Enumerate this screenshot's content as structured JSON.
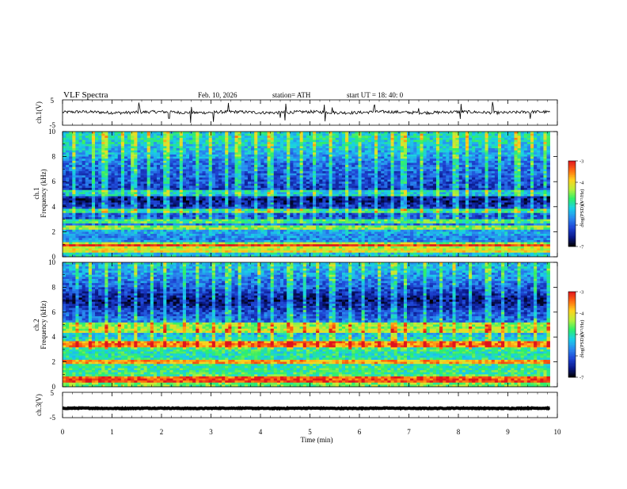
{
  "header": {
    "title": "VLF  Spectra",
    "date": "Feb. 10, 2026",
    "station": "station= ATH",
    "start": "start  UT  =    18: 40: 0"
  },
  "colors": {
    "axis": "#000000",
    "waveform": "#000000",
    "colormap": [
      "#000000",
      "#0a1a8c",
      "#1f46d6",
      "#2a8cf0",
      "#19d0e8",
      "#2ef06a",
      "#b8f03a",
      "#ffd21e",
      "#ff6a10",
      "#e0141e",
      "#ffffff"
    ]
  },
  "chart_data": [
    {
      "type": "line",
      "name": "ch1-waveform",
      "ylabel": "ch.1(V)",
      "ylim": [
        -5,
        5
      ],
      "yticks": [
        "5",
        "-5"
      ],
      "x_range_min": [
        0,
        9.85
      ],
      "baseline_v": 0.1,
      "noise_amplitude_v": 0.6,
      "spikes_min": [
        1.55,
        2.15,
        2.6,
        3.05,
        3.35,
        4.4,
        4.5,
        5.3,
        5.45,
        6.3,
        7.2,
        8.05,
        8.7,
        9.45
      ],
      "legend": false
    },
    {
      "type": "heatmap",
      "name": "ch1-spectrogram",
      "ylabel_top": "ch.1",
      "ylabel": "Frequency (kHz)",
      "xlim": [
        0,
        10
      ],
      "ylim": [
        0,
        10
      ],
      "yticks": [
        "0",
        "2",
        "4",
        "6",
        "8",
        "10"
      ],
      "data_x_range_min": [
        0,
        9.85
      ],
      "colorbar": {
        "label": "log(PSD)(V²/Hz)",
        "range": [
          -7,
          -3
        ],
        "ticks": [
          "-3",
          "-4",
          "-5",
          "-6",
          "-7"
        ]
      },
      "freq_profile_khz": [
        0,
        0.5,
        1,
        1.5,
        2,
        2.5,
        3,
        3.5,
        4,
        4.5,
        5,
        5.5,
        6,
        6.5,
        7,
        7.5,
        8,
        8.5,
        9,
        9.5,
        10
      ],
      "mean_log_psd": [
        -5.2,
        -5.3,
        -5.6,
        -5.7,
        -5.4,
        -5.8,
        -6.0,
        -6.0,
        -6.3,
        -6.6,
        -6.5,
        -6.2,
        -6.1,
        -6.0,
        -5.9,
        -5.8,
        -5.6,
        -5.4,
        -5.2,
        -5.1,
        -5.1
      ],
      "line_frequencies_khz": [
        0.5,
        0.8,
        1.0,
        2.3,
        2.8,
        3.7,
        4.9,
        5.2
      ],
      "sferic_times_min": [
        0.25,
        0.6,
        0.85,
        1.2,
        1.45,
        1.75,
        2.1,
        2.4,
        2.75,
        3.0,
        3.3,
        3.55,
        3.9,
        4.2,
        4.55,
        4.85,
        5.1,
        5.4,
        5.75,
        6.0,
        6.35,
        6.65,
        6.9,
        7.25,
        7.6,
        7.95,
        8.2,
        8.55,
        8.85,
        9.2,
        9.5,
        9.75
      ]
    },
    {
      "type": "heatmap",
      "name": "ch2-spectrogram",
      "ylabel_top": "ch.2",
      "ylabel": "Frequency (kHz)",
      "xlim": [
        0,
        10
      ],
      "ylim": [
        0,
        10
      ],
      "yticks": [
        "0",
        "2",
        "4",
        "6",
        "8",
        "10"
      ],
      "data_x_range_min": [
        0,
        9.85
      ],
      "colorbar": {
        "label": "log(PSD)(V²/Hz)",
        "range": [
          -7,
          -3
        ],
        "ticks": [
          "-3",
          "-4",
          "-5",
          "-6",
          "-7"
        ]
      },
      "freq_profile_khz": [
        0,
        0.5,
        1,
        1.5,
        2,
        2.5,
        3,
        3.5,
        4,
        4.5,
        5,
        5.5,
        6,
        6.5,
        7,
        7.5,
        8,
        8.5,
        9,
        9.5,
        10
      ],
      "mean_log_psd": [
        -4.6,
        -4.4,
        -4.8,
        -4.9,
        -4.9,
        -5.0,
        -4.9,
        -4.7,
        -5.3,
        -5.5,
        -5.7,
        -5.9,
        -6.1,
        -6.4,
        -6.6,
        -6.3,
        -6.0,
        -5.8,
        -5.6,
        -5.4,
        -5.3
      ],
      "line_frequencies_khz": [
        0.4,
        0.7,
        1.9,
        2.1,
        3.3,
        3.6,
        4.4,
        4.7,
        5.0
      ],
      "sferic_times_min": [
        0.3,
        0.55,
        0.9,
        1.15,
        1.5,
        1.8,
        2.05,
        2.45,
        2.7,
        3.05,
        3.35,
        3.6,
        3.95,
        4.25,
        4.6,
        4.9,
        5.15,
        5.45,
        5.8,
        6.05,
        6.4,
        6.7,
        6.95,
        7.3,
        7.65,
        7.9,
        8.25,
        8.6,
        8.9,
        9.25,
        9.55,
        9.8
      ]
    },
    {
      "type": "line",
      "name": "ch3-waveform",
      "ylabel": "ch.3(V)",
      "ylim": [
        -5,
        5
      ],
      "yticks": [
        "5",
        "-5"
      ],
      "x_range_min": [
        0,
        9.85
      ],
      "baseline_v": -1.3,
      "noise_amplitude_v": 0.15,
      "legend": false
    }
  ],
  "time_axis": {
    "xlabel": "Time  (min)",
    "xlim": [
      0,
      10
    ],
    "ticks": [
      "0",
      "1",
      "2",
      "3",
      "4",
      "5",
      "6",
      "7",
      "8",
      "9",
      "10"
    ]
  }
}
